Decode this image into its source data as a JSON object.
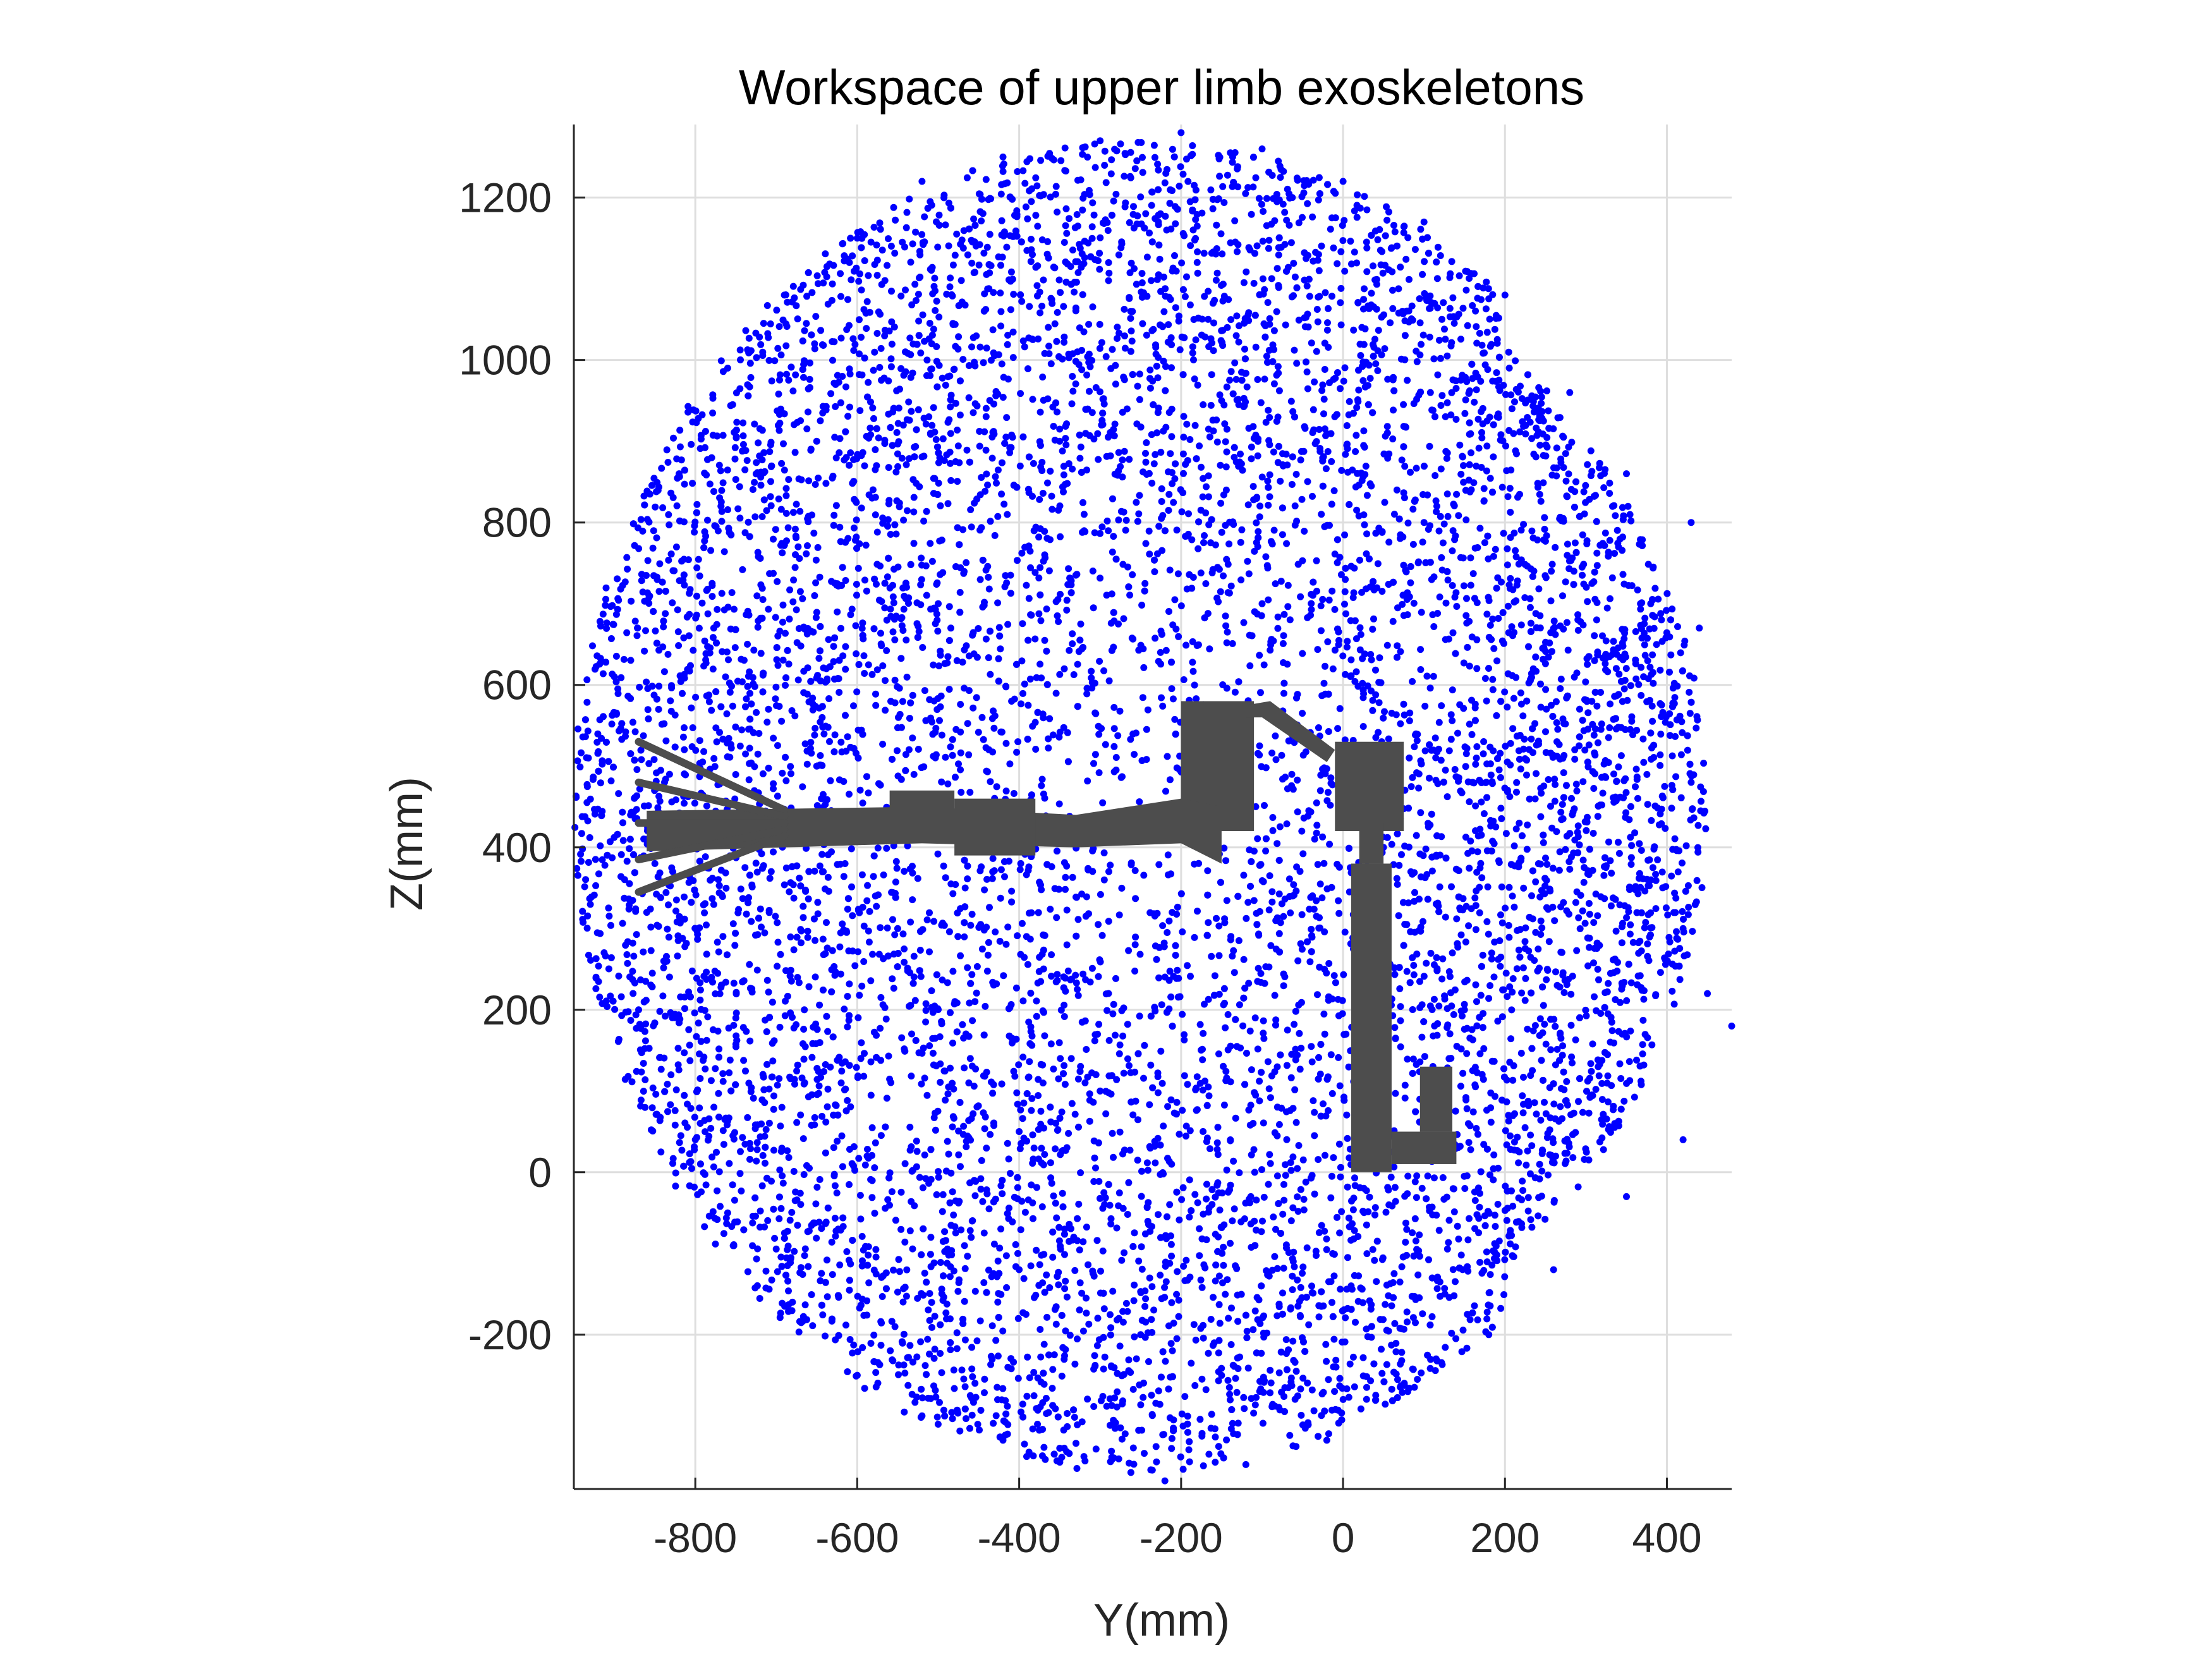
{
  "chart_data": {
    "type": "scatter",
    "title": "Workspace of upper limb exoskeletons",
    "xlabel": "Y(mm)",
    "ylabel": "Z(mm)",
    "xlim": [
      -950,
      480
    ],
    "ylim": [
      -390,
      1290
    ],
    "xticks": [
      -800,
      -600,
      -400,
      -200,
      0,
      200,
      400
    ],
    "yticks": [
      -200,
      0,
      200,
      400,
      600,
      800,
      1000,
      1200
    ],
    "grid": true,
    "point_color": "#0000ff",
    "robot_color": "#4d4d4d",
    "series": [
      {
        "type": "point-cloud",
        "distribution": "ellipsoid workspace point cloud",
        "center": [
          -250,
          450
        ],
        "radius_x": 700,
        "radius_y": 820,
        "count": 9000,
        "points": [
          [
            -880,
            440
          ],
          [
            -900,
            610
          ],
          [
            -860,
            320
          ],
          [
            -820,
            860
          ],
          [
            -800,
            40
          ],
          [
            -760,
            990
          ],
          [
            -690,
            1080
          ],
          [
            -600,
            1150
          ],
          [
            -520,
            1220
          ],
          [
            -420,
            1250
          ],
          [
            -300,
            1270
          ],
          [
            -200,
            1280
          ],
          [
            -100,
            1260
          ],
          [
            0,
            1220
          ],
          [
            100,
            1170
          ],
          [
            200,
            1080
          ],
          [
            280,
            960
          ],
          [
            350,
            860
          ],
          [
            380,
            700
          ],
          [
            430,
            800
          ],
          [
            440,
            670
          ],
          [
            430,
            480
          ],
          [
            420,
            300
          ],
          [
            450,
            220
          ],
          [
            480,
            180
          ],
          [
            420,
            40
          ],
          [
            350,
            -30
          ],
          [
            260,
            -120
          ],
          [
            180,
            -200
          ],
          [
            80,
            -270
          ],
          [
            -20,
            -330
          ],
          [
            -120,
            -360
          ],
          [
            -220,
            -380
          ],
          [
            -320,
            -350
          ],
          [
            -420,
            -330
          ],
          [
            -520,
            -300
          ],
          [
            -600,
            -250
          ],
          [
            -680,
            -160
          ],
          [
            -760,
            -50
          ],
          [
            -830,
            120
          ],
          [
            -870,
            200
          ],
          [
            -780,
            240
          ],
          [
            -650,
            500
          ],
          [
            -500,
            700
          ],
          [
            -350,
            900
          ],
          [
            -150,
            950
          ],
          [
            -100,
            700
          ],
          [
            50,
            400
          ],
          [
            150,
            200
          ],
          [
            -300,
            100
          ],
          [
            -400,
            -120
          ],
          [
            -250,
            -200
          ],
          [
            -550,
            300
          ],
          [
            -650,
            900
          ],
          [
            100,
            800
          ]
        ]
      }
    ]
  }
}
